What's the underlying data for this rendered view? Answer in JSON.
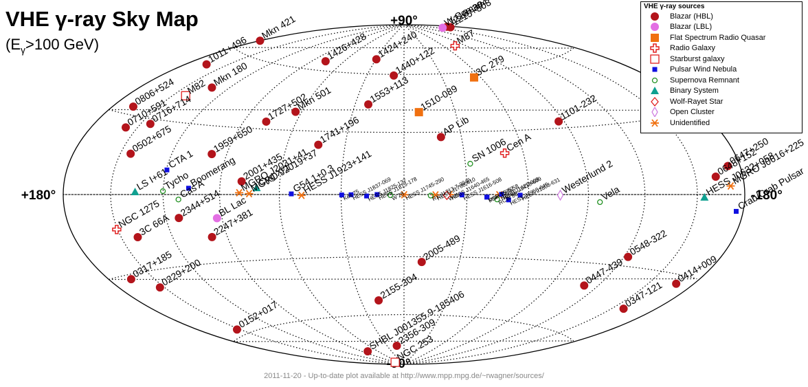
{
  "title": "VHE γ-ray Sky Map",
  "subtitle_main": "(E",
  "subtitle_sub": "γ",
  "subtitle_tail": ">100 GeV)",
  "footer": "2011-11-20 - Up-to-date plot available at http://www.mpp.mpg.de/~rwagner/sources/",
  "colors": {
    "blazar_hbl": "#b3141b",
    "blazar_lbl": "#e36fe3",
    "fsrq": "#f07010",
    "radio_galaxy": "#e02020",
    "starburst": "#e02020",
    "pwn": "#1010e0",
    "snr": "#209020",
    "binary": "#10a090",
    "wolf_rayet": "#e02020",
    "open_cluster": "#d080e0",
    "unidentified": "#f07010"
  },
  "chart_data": {
    "type": "scatter",
    "projection": "Hammer-Aitoff (galactic coordinates)",
    "axes_labels": {
      "top": "+90°",
      "bottom": "-90°",
      "left": "+180°",
      "right": "-180°"
    },
    "legend_title": "VHE γ-ray sources",
    "legend": [
      {
        "key": "blazar_hbl",
        "label": "Blazar (HBL)"
      },
      {
        "key": "blazar_lbl",
        "label": "Blazar (LBL)"
      },
      {
        "key": "fsrq",
        "label": "Flat Spectrum Radio Quasar"
      },
      {
        "key": "radio_galaxy",
        "label": "Radio Galaxy"
      },
      {
        "key": "starburst",
        "label": "Starburst galaxy"
      },
      {
        "key": "pwn",
        "label": "Pulsar Wind Nebula"
      },
      {
        "key": "snr",
        "label": "Supernova Remnant"
      },
      {
        "key": "binary",
        "label": "Binary System"
      },
      {
        "key": "wolf_rayet",
        "label": "Wolf-Rayet Star"
      },
      {
        "key": "open_cluster",
        "label": "Open Cluster"
      },
      {
        "key": "unidentified",
        "label": "Unidentified"
      }
    ],
    "sources": [
      {
        "name": "Mkn 421",
        "type": "blazar_hbl",
        "l": 179.8,
        "b": 65.0
      },
      {
        "name": "1011+496",
        "type": "blazar_hbl",
        "l": 165.5,
        "b": 52.7
      },
      {
        "name": "Mkn 180",
        "type": "blazar_hbl",
        "l": 131.9,
        "b": 45.6
      },
      {
        "name": "0806+524",
        "type": "blazar_hbl",
        "l": 166.2,
        "b": 32.9
      },
      {
        "name": "0710+591",
        "type": "blazar_hbl",
        "l": 157.4,
        "b": 25.4
      },
      {
        "name": "0716+714",
        "type": "blazar_hbl",
        "l": 144.0,
        "b": 28.0
      },
      {
        "name": "0502+675",
        "type": "blazar_hbl",
        "l": 143.8,
        "b": 15.9
      },
      {
        "name": "1959+650",
        "type": "blazar_hbl",
        "l": 98.0,
        "b": 17.7
      },
      {
        "name": "1727+502",
        "type": "blazar_hbl",
        "l": 77.1,
        "b": 33.5
      },
      {
        "name": "Mkn 501",
        "type": "blazar_hbl",
        "l": 63.6,
        "b": 38.9
      },
      {
        "name": "1426+428",
        "type": "blazar_hbl",
        "l": 77.5,
        "b": 64.9
      },
      {
        "name": "1424+240",
        "type": "blazar_hbl",
        "l": 29.5,
        "b": 68.2
      },
      {
        "name": "1218+304",
        "type": "blazar_hbl",
        "l": 186.4,
        "b": 82.7
      },
      {
        "name": "1215+303",
        "type": "blazar_hbl",
        "l": 188.9,
        "b": 82.1
      },
      {
        "name": "W Comae",
        "type": "blazar_lbl",
        "l": 201.7,
        "b": 83.3
      },
      {
        "name": "1440+122",
        "type": "blazar_hbl",
        "l": 8.3,
        "b": 59.4
      },
      {
        "name": "1553+113",
        "type": "blazar_hbl",
        "l": 21.9,
        "b": 43.9
      },
      {
        "name": "1510-089",
        "type": "fsrq",
        "l": 351.3,
        "b": 40.1
      },
      {
        "name": "AP Lib",
        "type": "blazar_hbl",
        "l": 340.7,
        "b": 27.6
      },
      {
        "name": "1101-232",
        "type": "blazar_hbl",
        "l": 273.2,
        "b": 33.1
      },
      {
        "name": "1741+196",
        "type": "blazar_hbl",
        "l": 43.8,
        "b": 23.5
      },
      {
        "name": "2001+435",
        "type": "blazar_hbl",
        "l": 79.1,
        "b": 5.9
      },
      {
        "name": "2344+514",
        "type": "blazar_hbl",
        "l": 112.9,
        "b": -9.9
      },
      {
        "name": "3C 66A",
        "type": "blazar_hbl",
        "l": 140.1,
        "b": -16.8
      },
      {
        "name": "BL Lac",
        "type": "blazar_lbl",
        "l": 92.6,
        "b": -10.4
      },
      {
        "name": "NGC 1275",
        "type": "radio_galaxy",
        "l": 150.6,
        "b": -13.3
      },
      {
        "name": "0317+185",
        "type": "blazar_hbl",
        "l": 165.1,
        "b": -31.7
      },
      {
        "name": "0229+200",
        "type": "blazar_hbl",
        "l": 152.9,
        "b": -36.6
      },
      {
        "name": "SHBL J001355.9-185406",
        "type": "blazar_hbl",
        "l": 79.7,
        "b": -79.8
      },
      {
        "name": "0152+017",
        "type": "blazar_hbl",
        "l": 152.4,
        "b": -57.6
      },
      {
        "name": "2247+381",
        "type": "blazar_hbl",
        "l": 98.3,
        "b": -18.6
      },
      {
        "name": "2155-304",
        "type": "blazar_hbl",
        "l": 17.7,
        "b": -52.2
      },
      {
        "name": "2005-489",
        "type": "blazar_hbl",
        "l": 350.4,
        "b": -32.6
      },
      {
        "name": "2356-309",
        "type": "blazar_hbl",
        "l": 12.8,
        "b": -78.0
      },
      {
        "name": "NGC 253",
        "type": "starburst",
        "l": 97.4,
        "b": -88.0
      },
      {
        "name": "0548-322",
        "type": "blazar_hbl",
        "l": 237.6,
        "b": -26.1
      },
      {
        "name": "0447-439",
        "type": "blazar_hbl",
        "l": 248.8,
        "b": -39.9
      },
      {
        "name": "0414+009",
        "type": "blazar_hbl",
        "l": 191.8,
        "b": -33.2
      },
      {
        "name": "0347-121",
        "type": "blazar_hbl",
        "l": 201.9,
        "b": -45.7
      },
      {
        "name": "M87",
        "type": "radio_galaxy",
        "l": 283.8,
        "b": 74.5
      },
      {
        "name": "3C 279",
        "type": "fsrq",
        "l": 305.1,
        "b": 57.1
      },
      {
        "name": "M82",
        "type": "starburst",
        "l": 141.4,
        "b": 40.6
      },
      {
        "name": "Cen A",
        "type": "radio_galaxy",
        "l": 309.5,
        "b": 19.4
      },
      {
        "name": "SN 1006",
        "type": "snr",
        "l": 327.6,
        "b": 14.6
      },
      {
        "name": "Westerlund 2",
        "type": "open_cluster",
        "l": 284.3,
        "b": -0.3
      },
      {
        "name": "Vela",
        "type": "snr",
        "l": 263.9,
        "b": -3.3
      },
      {
        "name": "0647+250",
        "type": "blazar_hbl",
        "l": 188.0,
        "b": 10.0
      },
      {
        "name": "0648+152",
        "type": "blazar_hbl",
        "l": 197.6,
        "b": 6.5
      },
      {
        "name": "HESS J0632+058",
        "type": "binary",
        "l": 205.7,
        "b": -1.0
      },
      {
        "name": "Crab",
        "type": "pwn",
        "l": 184.6,
        "b": -5.8
      },
      {
        "name": "Crab Pulsar",
        "type": "pwn",
        "l": 184.6,
        "b": -5.8
      },
      {
        "name": "MGRO J0616+225",
        "type": "unidentified",
        "l": 189.0,
        "b": 3.0
      },
      {
        "name": "LS I+61 303",
        "type": "binary",
        "l": 135.7,
        "b": 1.1
      },
      {
        "name": "Tycho",
        "type": "snr",
        "l": 120.1,
        "b": 1.4
      },
      {
        "name": "Cas A",
        "type": "snr",
        "l": 111.7,
        "b": -2.1
      },
      {
        "name": "CTA 1",
        "type": "pwn",
        "l": 119.6,
        "b": 10.2
      },
      {
        "name": "Boomerang",
        "type": "pwn",
        "l": 106.3,
        "b": 2.7
      },
      {
        "name": "Cyg X-1",
        "type": "binary",
        "l": 71.3,
        "b": 3.1
      },
      {
        "name": "MGRO J2031+41",
        "type": "unidentified",
        "l": 80.0,
        "b": 0.8
      },
      {
        "name": "MGRO J2019+37",
        "type": "unidentified",
        "l": 75.0,
        "b": 0.4
      },
      {
        "name": "G54.1+0.3",
        "type": "pwn",
        "l": 54.1,
        "b": 0.3
      },
      {
        "name": "HESS J1923+141",
        "type": "unidentified",
        "l": 49.1,
        "b": -0.4
      },
      {
        "name": "HESS J1745-290",
        "type": "unidentified",
        "l": 359.9,
        "b": -0.1
      },
      {
        "name": "HESS J1708-410",
        "type": "unidentified",
        "l": 345.0,
        "b": -0.2
      },
      {
        "name": "HESS J1616-508",
        "type": "pwn",
        "l": 332.4,
        "b": -0.2
      },
      {
        "name": "PSR 1509-58",
        "type": "pwn",
        "l": 320.3,
        "b": -1.2
      },
      {
        "name": "HESS J1427-608",
        "type": "unidentified",
        "l": 314.4,
        "b": -0.1
      },
      {
        "name": "HESS J1418-609",
        "type": "pwn",
        "l": 313.3,
        "b": 0.1
      },
      {
        "name": "HESS J1356-645",
        "type": "pwn",
        "l": 309.8,
        "b": -2.5
      },
      {
        "name": "HESS J1303-631",
        "type": "pwn",
        "l": 304.2,
        "b": -0.3
      },
      {
        "name": "Kes 75",
        "type": "pwn",
        "l": 29.7,
        "b": -0.2
      },
      {
        "name": "W 28",
        "type": "snr",
        "l": 6.5,
        "b": -0.3
      },
      {
        "name": "RX J1713.7-3946",
        "type": "snr",
        "l": 347.3,
        "b": -0.5
      },
      {
        "name": "MSH 15-52",
        "type": "pwn",
        "l": 320.4,
        "b": -1.2
      },
      {
        "name": "RCW 86",
        "type": "snr",
        "l": 315.4,
        "b": -2.3
      },
      {
        "name": "HESS J1837-069",
        "type": "pwn",
        "l": 25.2,
        "b": -0.1
      },
      {
        "name": "HESS J1813-178",
        "type": "pwn",
        "l": 12.8,
        "b": -0.0
      },
      {
        "name": "HESS J1825-137",
        "type": "pwn",
        "l": 17.8,
        "b": -0.7
      },
      {
        "name": "HESS J1640-465",
        "type": "unidentified",
        "l": 338.3,
        "b": -0.0
      },
      {
        "name": "Wd1",
        "type": "wolf_rayet",
        "l": 339.6,
        "b": -0.4
      }
    ]
  },
  "labels": {
    "Mkn 421": {
      "text": "Mkn 421"
    },
    "1011+496": {
      "text": "1011+496"
    },
    "Mkn 180": {
      "text": "Mkn 180"
    },
    "0806+524": {
      "text": "0806+524"
    },
    "0710+591": {
      "text": "0710+591"
    },
    "0716+714": {
      "text": "0716+714"
    },
    "0502+675": {
      "text": "0502+675"
    },
    "1959+650": {
      "text": "1959+650"
    },
    "1727+502": {
      "text": "1727+502"
    },
    "Mkn 501": {
      "text": "Mkn 501"
    },
    "1426+428": {
      "text": "1426+428"
    },
    "1424+240": {
      "text": "1424+240"
    },
    "1218+304": {
      "text": "1218+304"
    },
    "1215+303": {
      "text": "1215+303"
    },
    "W Comae": {
      "text": "W Comae"
    },
    "1440+122": {
      "text": "1440+122"
    },
    "1553+113": {
      "text": "1553+113"
    },
    "1510-089": {
      "text": "1510-089"
    },
    "AP Lib": {
      "text": "AP Lib"
    },
    "1101-232": {
      "text": "1101-232"
    },
    "1741+196": {
      "text": "1741+196"
    },
    "2001+435": {
      "text": "2001+435"
    },
    "2344+514": {
      "text": "2344+514"
    },
    "3C 66A": {
      "text": "3C 66A"
    },
    "BL Lac": {
      "text": "BL Lac"
    },
    "NGC 1275": {
      "text": "NGC 1275"
    },
    "0317+185": {
      "text": "0317+185"
    },
    "0229+200": {
      "text": "0229+200"
    },
    "SHBL J001355.9-185406": {
      "text": "SHBL J001355.9-185406"
    },
    "0152+017": {
      "text": "0152+017"
    },
    "2247+381": {
      "text": "2247+381"
    },
    "2155-304": {
      "text": "2155-304"
    },
    "2005-489": {
      "text": "2005-489"
    },
    "2356-309": {
      "text": "2356-309"
    },
    "NGC 253": {
      "text": "NGC 253"
    },
    "0548-322": {
      "text": "0548-322"
    },
    "0447-439": {
      "text": "0447-439"
    },
    "0414+009": {
      "text": "0414+009"
    },
    "0347-121": {
      "text": "0347-121"
    },
    "M87": {
      "text": "M87"
    },
    "3C 279": {
      "text": "3C 279"
    },
    "M82": {
      "text": "M82"
    },
    "Cen A": {
      "text": "Cen A"
    },
    "SN 1006": {
      "text": "SN 1006"
    },
    "Westerlund 2": {
      "text": "Westerlund 2"
    },
    "Vela": {
      "text": "Vela"
    },
    "0647+250": {
      "text": "0647+250"
    },
    "0648+152": {
      "text": "0648+152"
    },
    "HESS J0632+058": {
      "text": "HESS J0632+058"
    },
    "Crab Pulsar": {
      "text": "Crab/Crab Pulsar"
    },
    "MGRO J0616+225": {
      "text": "MGRO J0616+225"
    },
    "LS I+61 303": {
      "text": "LS I+61"
    },
    "Tycho": {
      "text": "Tycho"
    },
    "Cas A": {
      "text": "Cas A"
    },
    "CTA 1": {
      "text": "CTA 1"
    },
    "Boomerang": {
      "text": "Boomerang"
    },
    "Cyg X-1": {
      "text": "Cyg X-1"
    },
    "MGRO J2031+41": {
      "text": "MGRO J2031+41"
    },
    "MGRO J2019+37": {
      "text": "MGRO J2019+37"
    },
    "G54.1+0.3": {
      "text": "G54.1+0.3"
    },
    "HESS J1923+141": {
      "text": "HESS J1923+141"
    },
    "HESS J1745-290": {
      "text": "HESS J1745-290",
      "small": true
    },
    "HESS J1708-410": {
      "text": "HESS J1708-410",
      "small": true
    },
    "HESS J1616-508": {
      "text": "HESS J1616-508",
      "small": true
    },
    "PSR 1509-58": {
      "text": "PSR 1509-58",
      "small": true
    },
    "HESS J1427-608": {
      "text": "HESS J1427-608",
      "small": true
    },
    "HESS J1418-609": {
      "text": "HESS J1418-609",
      "small": true
    },
    "HESS J1356-645": {
      "text": "HESS J1356-645",
      "small": true
    },
    "HESS J1303-631": {
      "text": "HESS J1303-631",
      "small": true
    },
    "Kes 75": {
      "text": "Kes 75",
      "small": true
    },
    "W 28": {
      "text": "W 28",
      "small": true
    },
    "RX J1713.7-3946": {
      "text": "RX J1713.7-3946",
      "small": true
    },
    "MSH 15-52": {
      "text": "MSH 15-52",
      "small": true
    },
    "RCW 86": {
      "text": "RCW 86",
      "small": true
    },
    "HESS J1837-069": {
      "text": "HESS J1837-069",
      "small": true
    },
    "HESS J1813-178": {
      "text": "HESS J1813-178",
      "small": true
    },
    "HESS J1825-137": {
      "text": "HESS J1825-137",
      "small": true
    },
    "HESS J1640-465": {
      "text": "HESS J1640-465",
      "small": true
    },
    "Wd1": {
      "text": "Wd1",
      "small": true
    }
  }
}
